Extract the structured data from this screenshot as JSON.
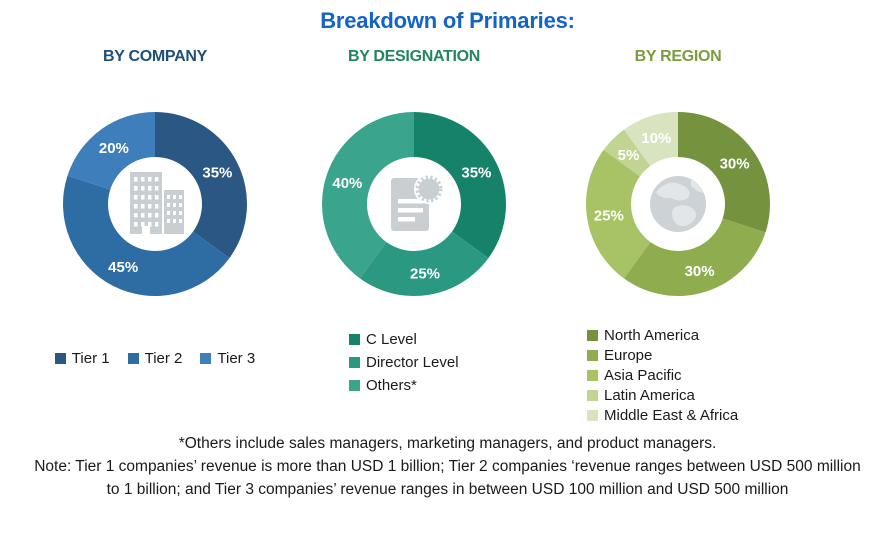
{
  "title": "Breakdown of Primaries:",
  "title_color": "#1463C7",
  "percent_suffix": "%",
  "chart_data": [
    {
      "type": "pie",
      "subtype": "donut",
      "title": "BY COMPANY",
      "title_color": "#1F4E79",
      "labels": [
        "Tier 1",
        "Tier 2",
        "Tier 3"
      ],
      "values": [
        35,
        45,
        20
      ],
      "colors": [
        "#2A5783",
        "#2E6DA4",
        "#3E7FBB"
      ],
      "center_icon": "building-icon",
      "legend_position": "bottom-horizontal",
      "start_angle_deg": 0,
      "direction": "clockwise"
    },
    {
      "type": "pie",
      "subtype": "donut",
      "title": "BY DESIGNATION",
      "title_color": "#23855F",
      "labels": [
        "C Level",
        "Director Level",
        "Others*"
      ],
      "values": [
        35,
        25,
        40
      ],
      "colors": [
        "#16826A",
        "#2B9882",
        "#3AA58C"
      ],
      "center_icon": "document-badge-icon",
      "legend_position": "bottom-vertical",
      "start_angle_deg": 0,
      "direction": "clockwise"
    },
    {
      "type": "pie",
      "subtype": "donut",
      "title": "BY REGION",
      "title_color": "#7C9C3F",
      "labels": [
        "North America",
        "Europe",
        "Asia Pacific",
        "Latin America",
        "Middle East & Africa"
      ],
      "values": [
        30,
        30,
        25,
        5,
        10
      ],
      "colors": [
        "#75923E",
        "#8FAD4F",
        "#A7C366",
        "#C1D494",
        "#D8E4C0"
      ],
      "center_icon": "globe-icon",
      "legend_position": "bottom-vertical",
      "start_angle_deg": 0,
      "direction": "clockwise"
    }
  ],
  "footnotes": {
    "others": "*Others include sales managers, marketing managers, and product managers.",
    "note": "Note: Tier 1 companies’ revenue is more than USD 1 billion; Tier 2 companies ‘revenue ranges between USD 500 million to 1 billion; and Tier 3 companies’ revenue ranges in between USD 100 million and USD 500 million"
  }
}
